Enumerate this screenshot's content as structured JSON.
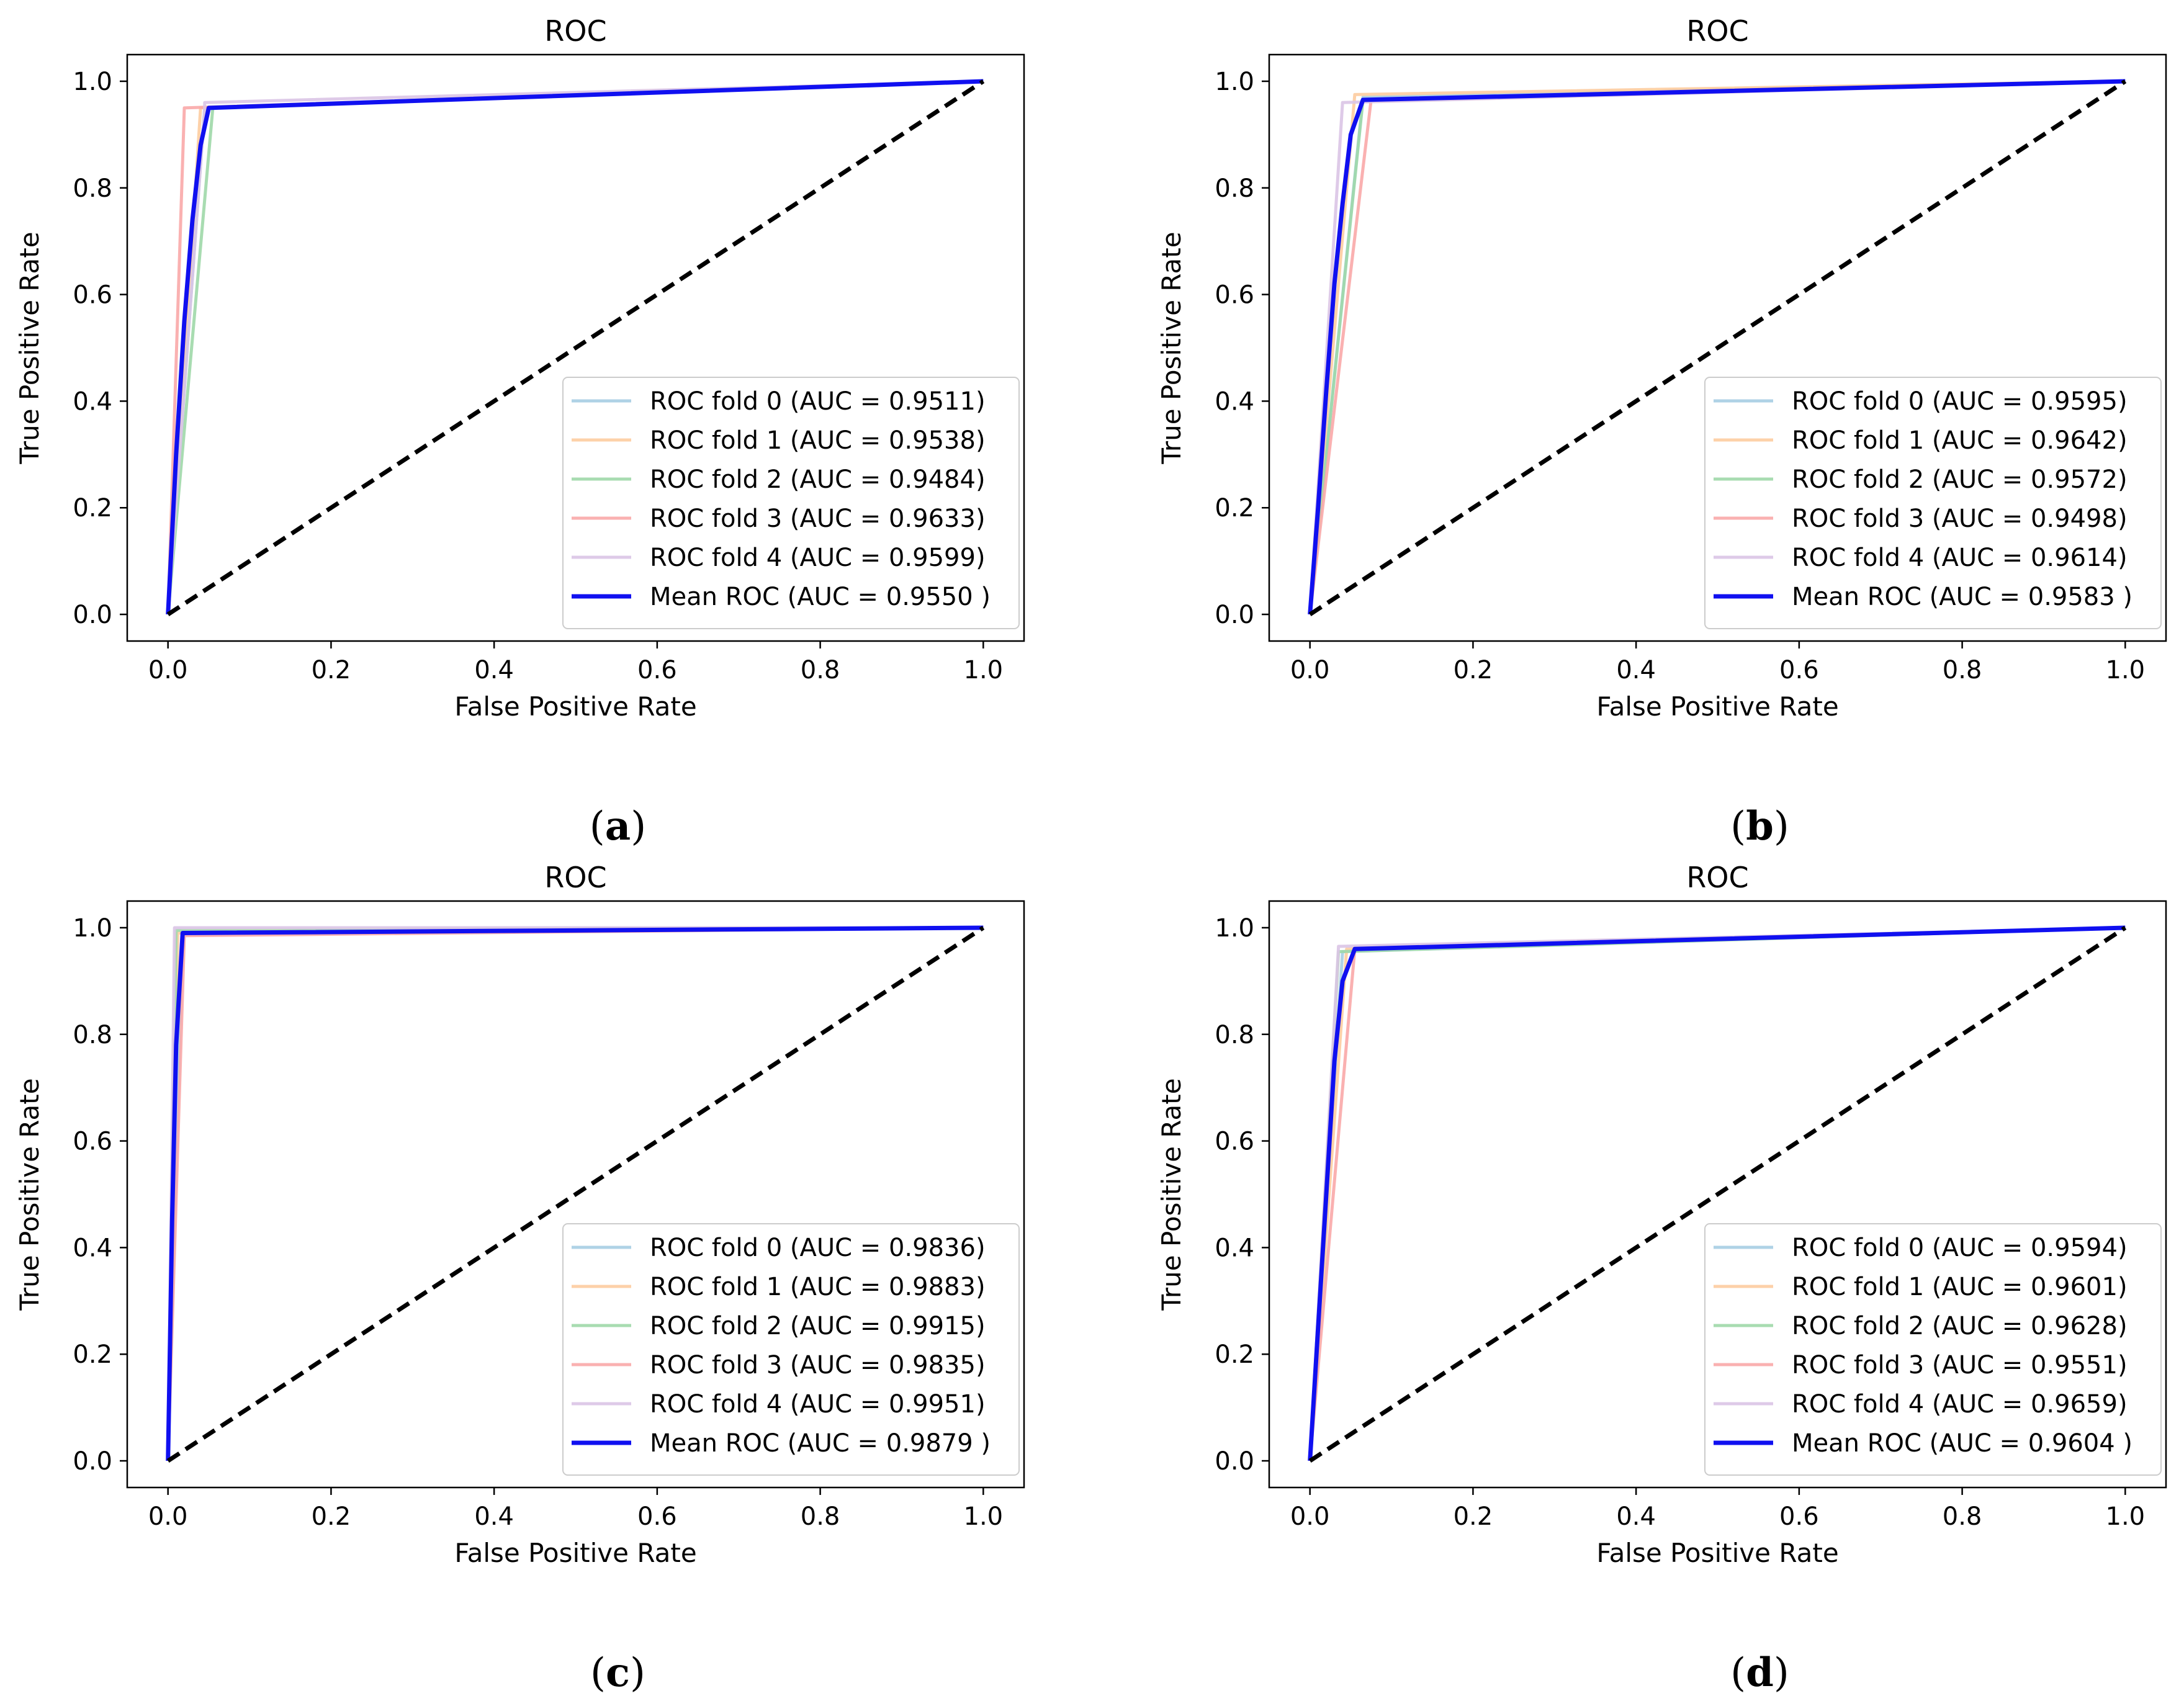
{
  "chart_data": [
    {
      "type": "line",
      "panel_label": "a",
      "title": "ROC",
      "xlabel": "False Positive Rate",
      "ylabel": "True Positive Rate",
      "xlim": [
        -0.05,
        1.05
      ],
      "ylim": [
        -0.05,
        1.05
      ],
      "xticks": [
        "0.0",
        "0.2",
        "0.4",
        "0.6",
        "0.8",
        "1.0"
      ],
      "yticks": [
        "0.0",
        "0.2",
        "0.4",
        "0.6",
        "0.8",
        "1.0"
      ],
      "legend_position": "lower-right",
      "series": [
        {
          "name": "ROC fold 0 (AUC = 0.9511)",
          "color": "#a6cde3",
          "x": [
            0,
            0.045,
            1.0
          ],
          "y": [
            0,
            0.95,
            1.0
          ]
        },
        {
          "name": "ROC fold 1 (AUC = 0.9538)",
          "color": "#fdcca0",
          "x": [
            0,
            0.04,
            1.0
          ],
          "y": [
            0,
            0.95,
            1.0
          ]
        },
        {
          "name": "ROC fold 2 (AUC = 0.9484)",
          "color": "#9fd8a8",
          "x": [
            0,
            0.055,
            1.0
          ],
          "y": [
            0,
            0.95,
            1.0
          ]
        },
        {
          "name": "ROC fold 3 (AUC = 0.9633)",
          "color": "#f9a8a8",
          "x": [
            0,
            0.02,
            0.02,
            1.0
          ],
          "y": [
            0,
            0.95,
            0.95,
            1.0
          ]
        },
        {
          "name": "ROC fold 4 (AUC = 0.9599)",
          "color": "#dac4e6",
          "x": [
            0,
            0.045,
            0.045,
            1.0
          ],
          "y": [
            0,
            0.95,
            0.96,
            1.0
          ]
        },
        {
          "name": "Mean ROC (AUC = 0.9550 )",
          "color": "#1010f0",
          "mean": true,
          "x": [
            0,
            0.01,
            0.02,
            0.03,
            0.04,
            0.05,
            1.0
          ],
          "y": [
            0,
            0.3,
            0.55,
            0.74,
            0.88,
            0.95,
            1.0
          ]
        }
      ]
    },
    {
      "type": "line",
      "panel_label": "b",
      "title": "ROC",
      "xlabel": "False Positive Rate",
      "ylabel": "True Positive Rate",
      "xlim": [
        -0.05,
        1.05
      ],
      "ylim": [
        -0.05,
        1.05
      ],
      "xticks": [
        "0.0",
        "0.2",
        "0.4",
        "0.6",
        "0.8",
        "1.0"
      ],
      "yticks": [
        "0.0",
        "0.2",
        "0.4",
        "0.6",
        "0.8",
        "1.0"
      ],
      "legend_position": "lower-right",
      "series": [
        {
          "name": "ROC fold 0 (AUC = 0.9595)",
          "color": "#a6cde3",
          "x": [
            0,
            0.065,
            1.0
          ],
          "y": [
            0,
            0.97,
            1.0
          ]
        },
        {
          "name": "ROC fold 1 (AUC = 0.9642)",
          "color": "#fdcca0",
          "x": [
            0,
            0.055,
            0.055,
            1.0
          ],
          "y": [
            0,
            0.975,
            0.975,
            1.0
          ]
        },
        {
          "name": "ROC fold 2 (AUC = 0.9572)",
          "color": "#9fd8a8",
          "x": [
            0,
            0.065,
            1.0
          ],
          "y": [
            0,
            0.965,
            1.0
          ]
        },
        {
          "name": "ROC fold 3 (AUC = 0.9498)",
          "color": "#f9a8a8",
          "x": [
            0,
            0.075,
            1.0
          ],
          "y": [
            0,
            0.965,
            1.0
          ]
        },
        {
          "name": "ROC fold 4 (AUC = 0.9614)",
          "color": "#dac4e6",
          "x": [
            0,
            0.04,
            0.04,
            1.0
          ],
          "y": [
            0,
            0.96,
            0.96,
            1.0
          ]
        },
        {
          "name": "Mean ROC (AUC = 0.9583 )",
          "color": "#1010f0",
          "mean": true,
          "x": [
            0,
            0.01,
            0.02,
            0.03,
            0.04,
            0.05,
            0.065,
            1.0
          ],
          "y": [
            0,
            0.2,
            0.42,
            0.62,
            0.77,
            0.9,
            0.965,
            1.0
          ]
        }
      ]
    },
    {
      "type": "line",
      "panel_label": "c",
      "title": "ROC",
      "xlabel": "False Positive Rate",
      "ylabel": "True Positive Rate",
      "xlim": [
        -0.05,
        1.05
      ],
      "ylim": [
        -0.05,
        1.05
      ],
      "xticks": [
        "0.0",
        "0.2",
        "0.4",
        "0.6",
        "0.8",
        "1.0"
      ],
      "yticks": [
        "0.0",
        "0.2",
        "0.4",
        "0.6",
        "0.8",
        "1.0"
      ],
      "legend_position": "lower-right",
      "series": [
        {
          "name": "ROC fold 0 (AUC = 0.9836)",
          "color": "#a6cde3",
          "x": [
            0,
            0.018,
            1.0
          ],
          "y": [
            0,
            0.99,
            1.0
          ]
        },
        {
          "name": "ROC fold 1 (AUC = 0.9883)",
          "color": "#fdcca0",
          "x": [
            0,
            0.012,
            1.0
          ],
          "y": [
            0,
            0.99,
            1.0
          ]
        },
        {
          "name": "ROC fold 2 (AUC = 0.9915)",
          "color": "#9fd8a8",
          "x": [
            0,
            0.01,
            1.0
          ],
          "y": [
            0,
            0.995,
            1.0
          ]
        },
        {
          "name": "ROC fold 3 (AUC = 0.9835)",
          "color": "#f9a8a8",
          "x": [
            0,
            0.02,
            1.0
          ],
          "y": [
            0,
            0.985,
            1.0
          ]
        },
        {
          "name": "ROC fold 4 (AUC = 0.9951)",
          "color": "#dac4e6",
          "x": [
            0,
            0.008,
            0.008,
            1.0
          ],
          "y": [
            0,
            1.0,
            1.0,
            1.0
          ]
        },
        {
          "name": "Mean ROC (AUC = 0.9879 )",
          "color": "#1010f0",
          "mean": true,
          "x": [
            0,
            0.005,
            0.01,
            0.018,
            1.0
          ],
          "y": [
            0,
            0.45,
            0.78,
            0.99,
            1.0
          ]
        }
      ]
    },
    {
      "type": "line",
      "panel_label": "d",
      "title": "ROC",
      "xlabel": "False Positive Rate",
      "ylabel": "True Positive Rate",
      "xlim": [
        -0.05,
        1.05
      ],
      "ylim": [
        -0.05,
        1.05
      ],
      "xticks": [
        "0.0",
        "0.2",
        "0.4",
        "0.6",
        "0.8",
        "1.0"
      ],
      "yticks": [
        "0.0",
        "0.2",
        "0.4",
        "0.6",
        "0.8",
        "1.0"
      ],
      "legend_position": "lower-right",
      "series": [
        {
          "name": "ROC fold 0 (AUC = 0.9594)",
          "color": "#a6cde3",
          "x": [
            0,
            0.04,
            1.0
          ],
          "y": [
            0,
            0.955,
            1.0
          ]
        },
        {
          "name": "ROC fold 1 (AUC = 0.9601)",
          "color": "#fdcca0",
          "x": [
            0,
            0.045,
            1.0
          ],
          "y": [
            0,
            0.96,
            1.0
          ]
        },
        {
          "name": "ROC fold 2 (AUC = 0.9628)",
          "color": "#9fd8a8",
          "x": [
            0,
            0.035,
            0.035,
            1.0
          ],
          "y": [
            0,
            0.955,
            0.955,
            1.0
          ]
        },
        {
          "name": "ROC fold 3 (AUC = 0.9551)",
          "color": "#f9a8a8",
          "x": [
            0,
            0.055,
            1.0
          ],
          "y": [
            0,
            0.96,
            1.0
          ]
        },
        {
          "name": "ROC fold 4 (AUC = 0.9659)",
          "color": "#dac4e6",
          "x": [
            0,
            0.035,
            0.035,
            1.0
          ],
          "y": [
            0,
            0.965,
            0.965,
            1.0
          ]
        },
        {
          "name": "Mean ROC (AUC = 0.9604 )",
          "color": "#1010f0",
          "mean": true,
          "x": [
            0,
            0.01,
            0.02,
            0.03,
            0.04,
            0.055,
            1.0
          ],
          "y": [
            0,
            0.25,
            0.5,
            0.75,
            0.9,
            0.96,
            1.0
          ]
        }
      ]
    }
  ],
  "chance_line": {
    "color": "#000000",
    "x": [
      0,
      1
    ],
    "y": [
      0,
      1
    ]
  }
}
